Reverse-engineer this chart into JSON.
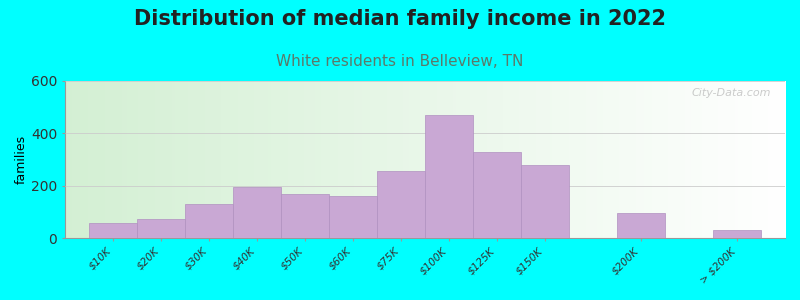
{
  "title": "Distribution of median family income in 2022",
  "subtitle": "White residents in Belleview, TN",
  "ylabel": "families",
  "background_outer": "#00FFFF",
  "bar_color": "#c9a8d4",
  "bar_edge_color": "#b090c0",
  "categories": [
    "$10K",
    "$20K",
    "$30K",
    "$40K",
    "$50K",
    "$60K",
    "$75K",
    "$100K",
    "$125K",
    "$150K",
    "$200K",
    "> $200K"
  ],
  "values": [
    60,
    75,
    130,
    195,
    170,
    160,
    255,
    470,
    330,
    280,
    95,
    30
  ],
  "bar_widths": [
    1,
    1,
    1,
    1,
    1,
    1,
    1,
    1,
    1,
    1,
    1,
    1
  ],
  "bar_lefts": [
    0,
    1,
    2,
    3,
    4,
    5,
    6,
    7,
    8,
    9,
    11,
    13
  ],
  "ylim": [
    0,
    600
  ],
  "yticks": [
    0,
    200,
    400,
    600
  ],
  "title_fontsize": 15,
  "subtitle_fontsize": 11,
  "subtitle_color": "#5a7a6a",
  "watermark": "City-Data.com",
  "tick_labels": [
    "$10K",
    "$20K",
    "$30K",
    "$40K",
    "$50K",
    "$60K",
    "$75K",
    "$100K",
    "$125K",
    "$150K",
    "$200K",
    "> $200K"
  ]
}
